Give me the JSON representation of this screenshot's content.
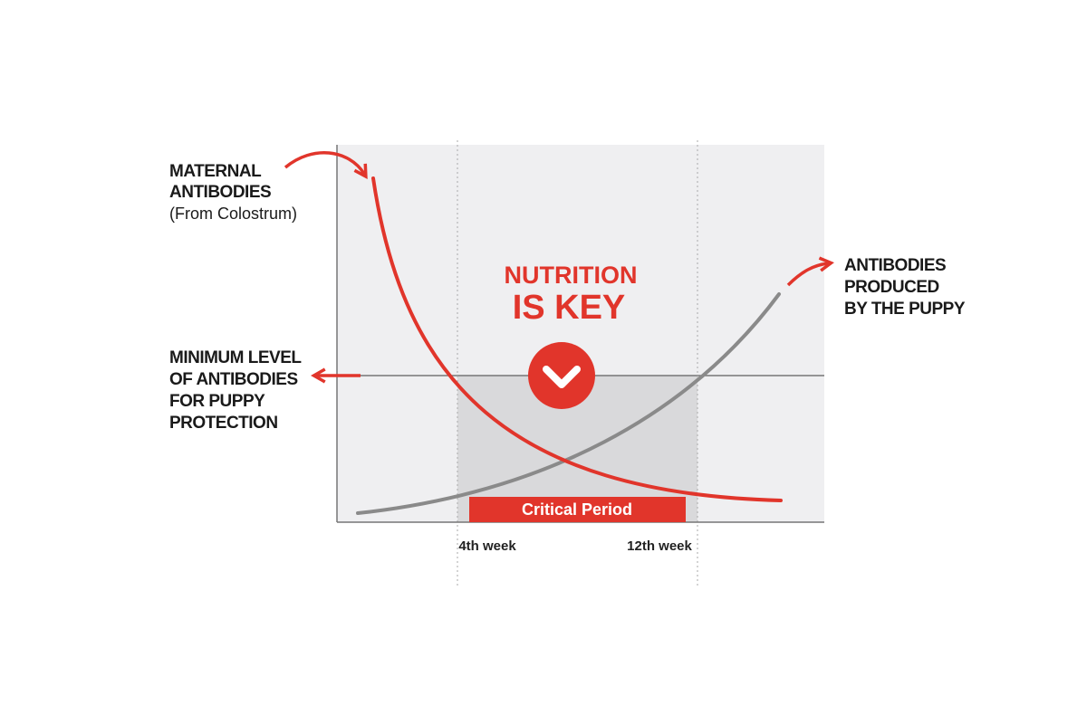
{
  "labels": {
    "maternal": {
      "title": [
        "MATERNAL",
        "ANTIBODIES"
      ],
      "note": "(From Colostrum)"
    },
    "minimum": [
      "MINIMUM LEVEL",
      "OF ANTIBODIES",
      "FOR PUPPY",
      "PROTECTION"
    ],
    "puppy": [
      "ANTIBODIES",
      "PRODUCED",
      "BY THE PUPPY"
    ],
    "center": [
      "NUTRITION",
      "IS KEY"
    ],
    "critical_period": "Critical Period",
    "weeks": [
      "4th week",
      "12th week"
    ]
  }
}
